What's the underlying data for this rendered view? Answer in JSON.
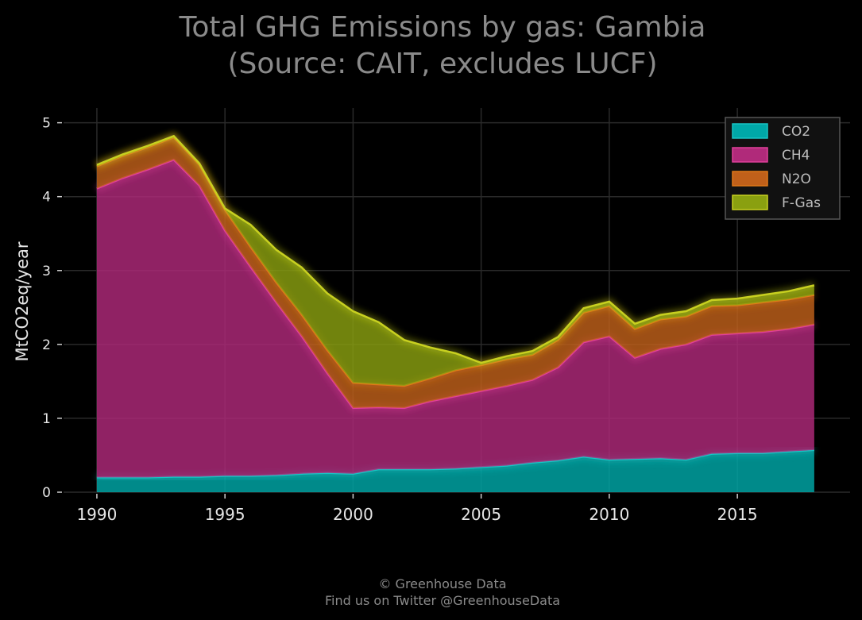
{
  "chart_data": {
    "type": "area",
    "stacked": true,
    "title_lines": [
      "Total GHG Emissions by gas: Gambia",
      "(Source: CAIT, excludes LUCF)"
    ],
    "xlabel": "",
    "ylabel": "MtCO2eq/year",
    "xlim": [
      1988.7,
      2019.4
    ],
    "ylim": [
      0,
      5.2
    ],
    "xticks": [
      1990,
      1995,
      2000,
      2005,
      2010,
      2015
    ],
    "yticks": [
      0,
      1,
      2,
      3,
      4,
      5
    ],
    "grid": true,
    "legend_position": "top-right",
    "x": [
      1990,
      1991,
      1992,
      1993,
      1994,
      1995,
      1996,
      1997,
      1998,
      1999,
      2000,
      2001,
      2002,
      2003,
      2004,
      2005,
      2006,
      2007,
      2008,
      2009,
      2010,
      2011,
      2012,
      2013,
      2014,
      2015,
      2016,
      2017,
      2018
    ],
    "series": [
      {
        "name": "CO2",
        "color": "#00a8a8",
        "line_color": "#19c4c4",
        "values": [
          0.2,
          0.2,
          0.2,
          0.21,
          0.21,
          0.22,
          0.22,
          0.23,
          0.25,
          0.26,
          0.25,
          0.31,
          0.31,
          0.31,
          0.32,
          0.34,
          0.36,
          0.4,
          0.43,
          0.48,
          0.44,
          0.45,
          0.46,
          0.44,
          0.52,
          0.53,
          0.53,
          0.55,
          0.57
        ]
      },
      {
        "name": "CH4",
        "color": "#b02a7a",
        "line_color": "#e0409a",
        "values": [
          3.91,
          4.05,
          4.17,
          4.29,
          3.94,
          3.32,
          2.83,
          2.34,
          1.86,
          1.35,
          0.89,
          0.84,
          0.83,
          0.92,
          0.98,
          1.03,
          1.08,
          1.12,
          1.26,
          1.55,
          1.67,
          1.37,
          1.48,
          1.56,
          1.61,
          1.62,
          1.64,
          1.66,
          1.7
        ]
      },
      {
        "name": "N2O",
        "color": "#c0601a",
        "line_color": "#e07818",
        "values": [
          0.3,
          0.3,
          0.3,
          0.3,
          0.28,
          0.28,
          0.27,
          0.27,
          0.29,
          0.31,
          0.34,
          0.31,
          0.3,
          0.31,
          0.35,
          0.35,
          0.36,
          0.34,
          0.37,
          0.4,
          0.41,
          0.39,
          0.4,
          0.38,
          0.39,
          0.38,
          0.4,
          0.4,
          0.4
        ]
      },
      {
        "name": "F-Gas",
        "color": "#8aa010",
        "line_color": "#c8d020",
        "values": [
          0.02,
          0.02,
          0.02,
          0.02,
          0.02,
          0.02,
          0.3,
          0.44,
          0.64,
          0.77,
          0.97,
          0.84,
          0.62,
          0.42,
          0.23,
          0.03,
          0.04,
          0.05,
          0.04,
          0.06,
          0.06,
          0.07,
          0.06,
          0.07,
          0.08,
          0.09,
          0.1,
          0.11,
          0.13
        ]
      }
    ]
  },
  "footer": {
    "line1": "© Greenhouse Data",
    "line2": "Find us on Twitter @GreenhouseData"
  }
}
